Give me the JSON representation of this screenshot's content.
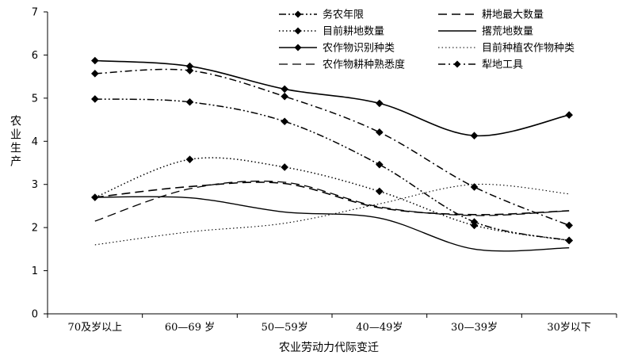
{
  "chart_data": {
    "type": "line",
    "title": "",
    "xlabel": "农业劳动力代际变迁",
    "ylabel": "农业生产",
    "ylim": [
      0,
      7
    ],
    "yticks": [
      0,
      1,
      2,
      3,
      4,
      5,
      6,
      7
    ],
    "grid": false,
    "legend_position": "top-right",
    "categories": [
      "70及岁以上",
      "60—69 岁",
      "50—59岁",
      "40—49岁",
      "30—39岁",
      "30岁以下"
    ],
    "series": [
      {
        "name": "务农年限",
        "values": [
          4.98,
          4.91,
          4.46,
          3.46,
          2.13,
          1.7
        ],
        "dash": "dashdotdot",
        "width": 1.5,
        "marker": true
      },
      {
        "name": "耕地最大数量",
        "values": [
          2.7,
          2.95,
          3.02,
          2.46,
          2.3,
          2.39
        ],
        "dash": "longdash",
        "width": 1.6,
        "marker": false
      },
      {
        "name": "目前耕地数量",
        "values": [
          2.7,
          3.58,
          3.4,
          2.84,
          2.05,
          1.7
        ],
        "dash": "dotted",
        "width": 1.5,
        "marker": true
      },
      {
        "name": "撂荒地数量",
        "values": [
          2.7,
          2.69,
          2.36,
          2.22,
          1.5,
          1.53
        ],
        "dash": "solid",
        "width": 1.4,
        "marker": false
      },
      {
        "name": "农作物识别种类",
        "values": [
          5.87,
          5.74,
          5.21,
          4.88,
          4.13,
          4.61
        ],
        "dash": "solid",
        "width": 1.6,
        "marker": true
      },
      {
        "name": "目前种植农作物种类",
        "values": [
          1.6,
          1.9,
          2.1,
          2.55,
          3.0,
          2.78
        ],
        "dash": "dotted",
        "width": 1.1,
        "marker": false
      },
      {
        "name": "农作物耕种熟悉度",
        "values": [
          2.15,
          2.9,
          3.05,
          2.48,
          2.28,
          2.39
        ],
        "dash": "longdash",
        "width": 1.3,
        "marker": false
      },
      {
        "name": "犁地工具",
        "values": [
          5.57,
          5.64,
          5.04,
          4.21,
          2.94,
          2.05
        ],
        "dash": "dashdot",
        "width": 1.5,
        "marker": true
      }
    ]
  }
}
